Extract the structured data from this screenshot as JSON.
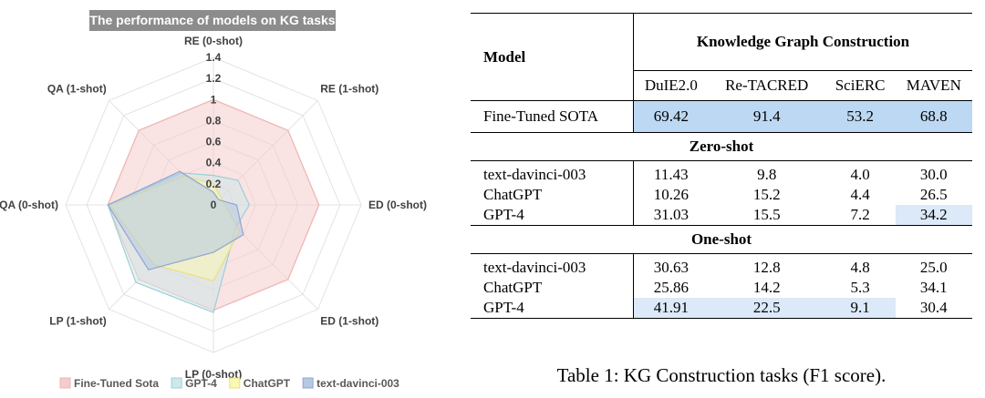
{
  "chart_data": {
    "type": "radar",
    "title": "The performance of models on KG tasks",
    "axes": [
      "RE (0-shot)",
      "RE (1-shot)",
      "ED (0-shot)",
      "ED (1-shot)",
      "LP (0-shot)",
      "LP (1-shot)",
      "QA (0-shot)",
      "QA (1-shot)"
    ],
    "ticks": [
      "0",
      "0.2",
      "0.4",
      "0.6",
      "0.8",
      "1",
      "1.2",
      "1.4"
    ],
    "rmax": 1.4,
    "series": [
      {
        "name": "Fine-Tuned Sota",
        "color": "#f4cccc",
        "stroke": "#f0b3b3",
        "values": [
          1.0,
          1.0,
          1.0,
          1.0,
          1.0,
          1.0,
          1.0,
          1.0
        ]
      },
      {
        "name": "GPT-4",
        "color": "#cfe8ea",
        "stroke": "#9ccfd5",
        "values": [
          0.28,
          0.33,
          0.34,
          0.3,
          1.02,
          1.04,
          1.0,
          0.43
        ]
      },
      {
        "name": "ChatGPT",
        "color": "#fbf7b4",
        "stroke": "#e9e27a",
        "values": [
          0.2,
          0.1,
          0.11,
          0.35,
          0.72,
          0.8,
          0.98,
          0.39
        ]
      },
      {
        "name": "text-davinci-003",
        "color": "#b7c9e2",
        "stroke": "#8ea7cf",
        "values": [
          0.12,
          0.07,
          0.22,
          0.4,
          0.45,
          0.87,
          1.0,
          0.45
        ]
      }
    ]
  },
  "table": {
    "header_model": "Model",
    "header_group": "Knowledge Graph Construction",
    "columns": [
      "DuIE2.0",
      "Re-TACRED",
      "SciERC",
      "MAVEN"
    ],
    "sota": {
      "model": "Fine-Tuned SOTA",
      "values": [
        "69.42",
        "91.4",
        "53.2",
        "68.8"
      ]
    },
    "zero_shot": {
      "label": "Zero-shot",
      "rows": [
        {
          "model": "text-davinci-003",
          "values": [
            "11.43",
            "9.8",
            "4.0",
            "30.0"
          ]
        },
        {
          "model": "ChatGPT",
          "values": [
            "10.26",
            "15.2",
            "4.4",
            "26.5"
          ]
        },
        {
          "model": "GPT-4",
          "values": [
            "31.03",
            "15.5",
            "7.2",
            "34.2"
          ]
        }
      ]
    },
    "one_shot": {
      "label": "One-shot",
      "rows": [
        {
          "model": "text-davinci-003",
          "values": [
            "30.63",
            "12.8",
            "4.8",
            "25.0"
          ]
        },
        {
          "model": "ChatGPT",
          "values": [
            "25.86",
            "14.2",
            "5.3",
            "34.1"
          ]
        },
        {
          "model": "GPT-4",
          "values": [
            "41.91",
            "22.5",
            "9.1",
            "30.4"
          ]
        }
      ]
    },
    "caption": "Table 1: KG Construction tasks (F1 score)."
  }
}
